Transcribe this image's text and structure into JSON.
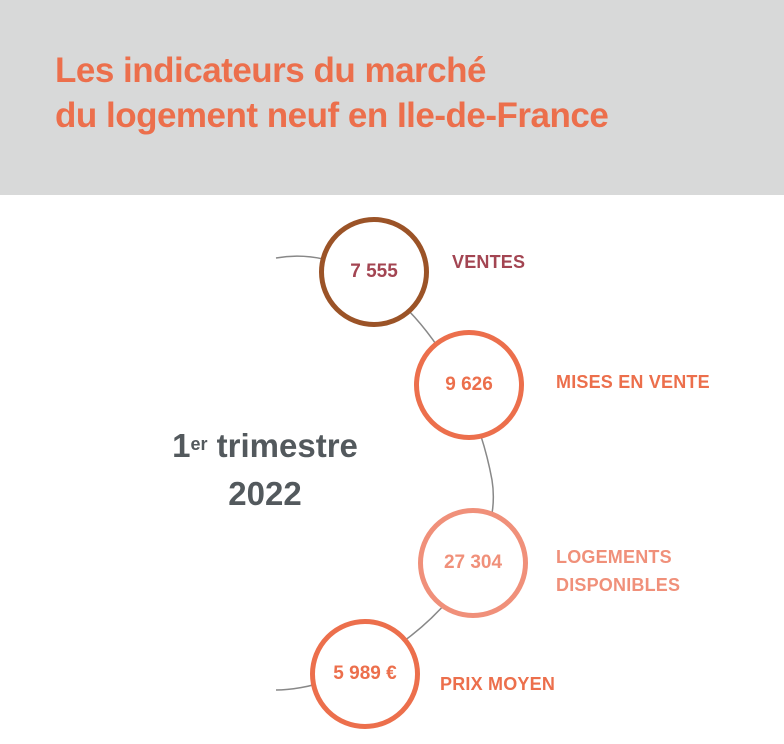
{
  "title": {
    "line1": "Les indicateurs du marché",
    "line2": "du logement neuf en Ile-de-France"
  },
  "period": {
    "ordinal": "1",
    "ordinal_suffix": "er",
    "word": "trimestre",
    "year": "2022"
  },
  "indicators": [
    {
      "value": "7 555",
      "label": "VENTES"
    },
    {
      "value": "9 626",
      "label": "MISES EN VENTE"
    },
    {
      "value": "27 304",
      "label_line1": "LOGEMENTS",
      "label_line2": "DISPONIBLES"
    },
    {
      "value": "5 989 €",
      "label": "PRIX MOYEN"
    }
  ],
  "colors": {
    "header_bg": "#d8d9d9",
    "title": "#ec6f4c",
    "period_text": "#53595d",
    "ventes": "#9b5327",
    "ventes_text": "#a34552",
    "mises_en_vente": "#ec6f4c",
    "logements": "#f0907a",
    "prix_moyen": "#ec6f4c",
    "arc": "#888888"
  }
}
